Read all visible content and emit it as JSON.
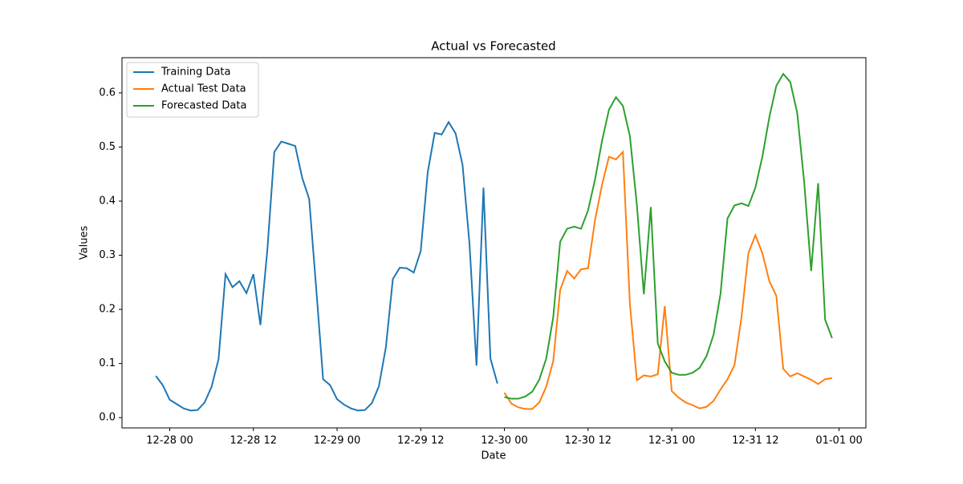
{
  "chart_data": {
    "type": "line",
    "title": "Actual vs Forecasted",
    "xlabel": "Date",
    "ylabel": "Values",
    "xlim": [
      "12-27 17:09",
      "01-01 03:51"
    ],
    "xticks": [
      "12-28 00",
      "12-28 12",
      "12-29 00",
      "12-29 12",
      "12-30 00",
      "12-30 12",
      "12-31 00",
      "12-31 12",
      "01-01 00"
    ],
    "ylim": [
      -0.019,
      0.665
    ],
    "yticks": [
      {
        "value": 0,
        "label": "0.0"
      },
      0.1,
      0.2,
      0.3,
      0.4,
      0.5,
      0.6
    ],
    "legend": "upper left",
    "series": [
      {
        "name": "Training Data",
        "color": "#1f77b4",
        "x": [
          "12-27 22",
          "12-27 23",
          "12-28 00",
          "12-28 01",
          "12-28 02",
          "12-28 03",
          "12-28 04",
          "12-28 05",
          "12-28 06",
          "12-28 07",
          "12-28 08",
          "12-28 09",
          "12-28 10",
          "12-28 11",
          "12-28 12",
          "12-28 13",
          "12-28 14",
          "12-28 15",
          "12-28 16",
          "12-28 17",
          "12-28 18",
          "12-28 19",
          "12-28 20",
          "12-28 21",
          "12-28 22",
          "12-28 23",
          "12-29 00",
          "12-29 01",
          "12-29 02",
          "12-29 03",
          "12-29 04",
          "12-29 05",
          "12-29 06",
          "12-29 07",
          "12-29 08",
          "12-29 09",
          "12-29 10",
          "12-29 11",
          "12-29 12",
          "12-29 13",
          "12-29 14",
          "12-29 15",
          "12-29 16",
          "12-29 17",
          "12-29 18",
          "12-29 19",
          "12-29 20",
          "12-29 21",
          "12-29 22",
          "12-29 23"
        ],
        "values": [
          0.077,
          0.06,
          0.033,
          0.025,
          0.017,
          0.013,
          0.014,
          0.028,
          0.057,
          0.108,
          0.265,
          0.241,
          0.252,
          0.23,
          0.265,
          0.171,
          0.31,
          0.491,
          0.51,
          0.506,
          0.502,
          0.443,
          0.404,
          0.24,
          0.071,
          0.06,
          0.034,
          0.024,
          0.017,
          0.013,
          0.014,
          0.027,
          0.058,
          0.13,
          0.256,
          0.277,
          0.276,
          0.268,
          0.308,
          0.453,
          0.526,
          0.523,
          0.546,
          0.525,
          0.467,
          0.32,
          0.096,
          0.425,
          0.109,
          0.063
        ]
      },
      {
        "name": "Actual Test Data",
        "color": "#ff7f0e",
        "x": [
          "12-30 00",
          "12-30 01",
          "12-30 02",
          "12-30 03",
          "12-30 04",
          "12-30 05",
          "12-30 06",
          "12-30 07",
          "12-30 08",
          "12-30 09",
          "12-30 10",
          "12-30 11",
          "12-30 12",
          "12-30 13",
          "12-30 14",
          "12-30 15",
          "12-30 16",
          "12-30 17",
          "12-30 18",
          "12-30 19",
          "12-30 20",
          "12-30 21",
          "12-30 22",
          "12-30 23",
          "12-31 00",
          "12-31 01",
          "12-31 02",
          "12-31 03",
          "12-31 04",
          "12-31 05",
          "12-31 06",
          "12-31 07",
          "12-31 08",
          "12-31 09",
          "12-31 10",
          "12-31 11",
          "12-31 12",
          "12-31 13",
          "12-31 14",
          "12-31 15",
          "12-31 16",
          "12-31 17",
          "12-31 18",
          "12-31 19",
          "12-31 20",
          "12-31 21",
          "12-31 22",
          "12-31 23"
        ],
        "values": [
          0.046,
          0.026,
          0.019,
          0.016,
          0.016,
          0.028,
          0.057,
          0.104,
          0.236,
          0.271,
          0.257,
          0.274,
          0.276,
          0.365,
          0.43,
          0.482,
          0.477,
          0.491,
          0.21,
          0.069,
          0.078,
          0.076,
          0.08,
          0.206,
          0.049,
          0.037,
          0.028,
          0.023,
          0.017,
          0.02,
          0.031,
          0.052,
          0.071,
          0.097,
          0.185,
          0.304,
          0.337,
          0.304,
          0.252,
          0.225,
          0.09,
          0.076,
          0.082,
          0.076,
          0.07,
          0.062,
          0.071,
          0.073
        ]
      },
      {
        "name": "Forecasted Data",
        "color": "#2ca02c",
        "x": [
          "12-30 00",
          "12-30 01",
          "12-30 02",
          "12-30 03",
          "12-30 04",
          "12-30 05",
          "12-30 06",
          "12-30 07",
          "12-30 08",
          "12-30 09",
          "12-30 10",
          "12-30 11",
          "12-30 12",
          "12-30 13",
          "12-30 14",
          "12-30 15",
          "12-30 16",
          "12-30 17",
          "12-30 18",
          "12-30 19",
          "12-30 20",
          "12-30 21",
          "12-30 22",
          "12-30 23",
          "12-31 00",
          "12-31 01",
          "12-31 02",
          "12-31 03",
          "12-31 04",
          "12-31 05",
          "12-31 06",
          "12-31 07",
          "12-31 08",
          "12-31 09",
          "12-31 10",
          "12-31 11",
          "12-31 12",
          "12-31 13",
          "12-31 14",
          "12-31 15",
          "12-31 16",
          "12-31 17",
          "12-31 18",
          "12-31 19",
          "12-31 20",
          "12-31 21",
          "12-31 22",
          "12-31 23"
        ],
        "values": [
          0.038,
          0.035,
          0.035,
          0.039,
          0.048,
          0.07,
          0.109,
          0.185,
          0.325,
          0.349,
          0.353,
          0.349,
          0.383,
          0.44,
          0.511,
          0.569,
          0.592,
          0.576,
          0.52,
          0.393,
          0.228,
          0.389,
          0.137,
          0.104,
          0.083,
          0.079,
          0.079,
          0.083,
          0.092,
          0.114,
          0.153,
          0.229,
          0.368,
          0.392,
          0.396,
          0.391,
          0.425,
          0.482,
          0.555,
          0.613,
          0.635,
          0.62,
          0.563,
          0.435,
          0.271,
          0.433,
          0.181,
          0.147
        ]
      }
    ]
  }
}
